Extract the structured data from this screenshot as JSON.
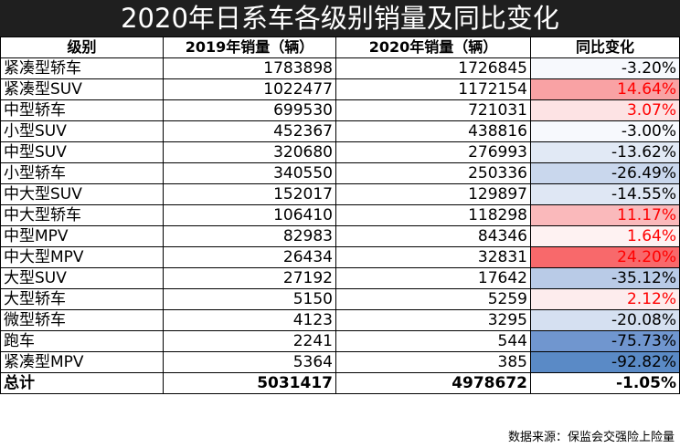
{
  "title": "2020年日系车各级别销量及同比变化",
  "source": "数据来源：保监会交强险上险量",
  "chart_data": {
    "type": "table",
    "title": "2020年日系车各级别销量及同比变化",
    "headers": [
      "级别",
      "2019年销量（辆）",
      "2020年销量（辆）",
      "同比变化"
    ],
    "rows": [
      {
        "name": "紧凑型轿车",
        "v2019": "1783898",
        "v2020": "1726845",
        "change": "-3.20%",
        "pct": -3.2,
        "bg": "#f7f9fd"
      },
      {
        "name": "紧凑型SUV",
        "v2019": "1022477",
        "v2020": "1172154",
        "change": "14.64%",
        "pct": 14.64,
        "bg": "#f9a2a4"
      },
      {
        "name": "中型轿车",
        "v2019": "699530",
        "v2020": "721031",
        "change": "3.07%",
        "pct": 3.07,
        "bg": "#fde3e4"
      },
      {
        "name": "小型SUV",
        "v2019": "452367",
        "v2020": "438816",
        "change": "-3.00%",
        "pct": -3.0,
        "bg": "#f7f9fd"
      },
      {
        "name": "中型SUV",
        "v2019": "320680",
        "v2020": "276993",
        "change": "-13.62%",
        "pct": -13.62,
        "bg": "#e1e9f5"
      },
      {
        "name": "小型轿车",
        "v2019": "340550",
        "v2020": "250336",
        "change": "-26.49%",
        "pct": -26.49,
        "bg": "#c9d7ed"
      },
      {
        "name": "中大型SUV",
        "v2019": "152017",
        "v2020": "129897",
        "change": "-14.55%",
        "pct": -14.55,
        "bg": "#dfe7f4"
      },
      {
        "name": "中大型轿车",
        "v2019": "106410",
        "v2020": "118298",
        "change": "11.17%",
        "pct": 11.17,
        "bg": "#fab9bb"
      },
      {
        "name": "中型MPV",
        "v2019": "82983",
        "v2020": "84346",
        "change": "1.64%",
        "pct": 1.64,
        "bg": "#fef2f2"
      },
      {
        "name": "中大型MPV",
        "v2019": "26434",
        "v2020": "32831",
        "change": "24.20%",
        "pct": 24.2,
        "bg": "#f8696b"
      },
      {
        "name": "大型SUV",
        "v2019": "27192",
        "v2020": "17642",
        "change": "-35.12%",
        "pct": -35.12,
        "bg": "#b9cbe7"
      },
      {
        "name": "大型轿车",
        "v2019": "5150",
        "v2020": "5259",
        "change": "2.12%",
        "pct": 2.12,
        "bg": "#fdeced"
      },
      {
        "name": "微型轿车",
        "v2019": "4123",
        "v2020": "3295",
        "change": "-20.08%",
        "pct": -20.08,
        "bg": "#d5e0f1"
      },
      {
        "name": "跑车",
        "v2019": "2241",
        "v2020": "544",
        "change": "-75.73%",
        "pct": -75.73,
        "bg": "#7096cf"
      },
      {
        "name": "紧凑型MPV",
        "v2019": "5364",
        "v2020": "385",
        "change": "-92.82%",
        "pct": -92.82,
        "bg": "#5a8ac6"
      }
    ],
    "total": {
      "name": "总计",
      "v2019": "5031417",
      "v2020": "4978672",
      "change": "-1.05%",
      "pct": -1.05
    }
  }
}
